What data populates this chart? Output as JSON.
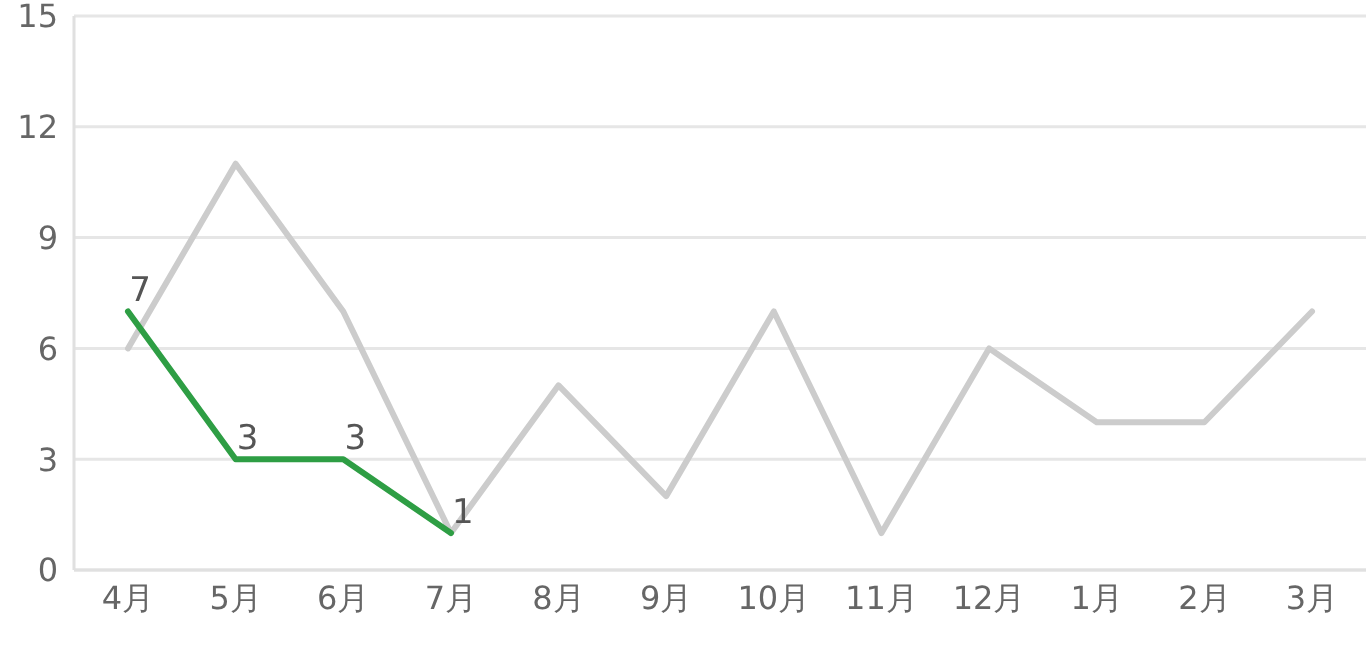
{
  "chart_data": {
    "type": "line",
    "categories": [
      "4月",
      "5月",
      "6月",
      "7月",
      "8月",
      "9月",
      "10月",
      "11月",
      "12月",
      "1月",
      "2月",
      "3月"
    ],
    "series": [
      {
        "color": "#cccccc",
        "values": [
          6,
          11,
          7,
          1,
          5,
          2,
          7,
          1,
          6,
          4,
          4,
          7
        ]
      },
      {
        "color": "#2e9e44",
        "values": [
          7,
          3,
          3,
          1,
          null,
          null,
          null,
          null,
          null,
          null,
          null,
          null
        ],
        "value_labels": [
          "7",
          "3",
          "3",
          "1",
          null,
          null,
          null,
          null,
          null,
          null,
          null,
          null
        ]
      }
    ],
    "ylim": [
      0,
      15
    ],
    "yticks": [
      0,
      3,
      6,
      9,
      12,
      15
    ],
    "grid": "y"
  }
}
